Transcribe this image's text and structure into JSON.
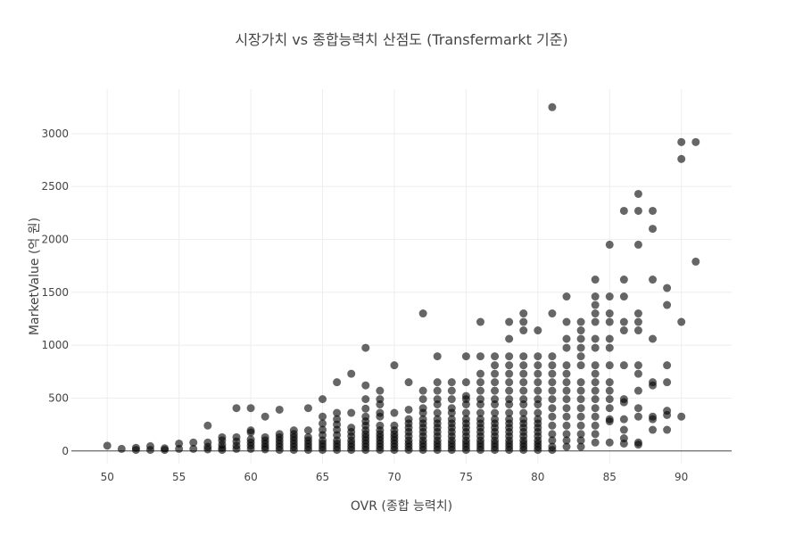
{
  "chart_data": {
    "type": "scatter",
    "title": "시장가치 vs 종합능력치 산점도 (Transfermarkt 기준)",
    "xlabel": "OVR (종합 능력치)",
    "ylabel": "MarketValue (억 원)",
    "xlim": [
      47.5,
      93.5
    ],
    "ylim": [
      -120,
      3420
    ],
    "xticks": [
      50,
      55,
      60,
      65,
      70,
      75,
      80,
      85,
      90
    ],
    "yticks": [
      0,
      500,
      1000,
      1500,
      2000,
      2500,
      3000
    ],
    "grid": true,
    "zeroline": true,
    "marker_color": "#000000",
    "marker_opacity": 0.6,
    "points": [
      [
        50,
        50
      ],
      [
        51,
        20
      ],
      [
        52,
        30
      ],
      [
        52,
        10
      ],
      [
        53,
        45
      ],
      [
        53,
        10
      ],
      [
        54,
        25
      ],
      [
        54,
        10
      ],
      [
        55,
        70
      ],
      [
        55,
        20
      ],
      [
        56,
        80
      ],
      [
        56,
        20
      ],
      [
        57,
        240
      ],
      [
        57,
        80
      ],
      [
        57,
        40
      ],
      [
        57,
        15
      ],
      [
        58,
        130
      ],
      [
        58,
        100
      ],
      [
        58,
        60
      ],
      [
        58,
        30
      ],
      [
        58,
        10
      ],
      [
        59,
        405
      ],
      [
        59,
        130
      ],
      [
        59,
        90
      ],
      [
        59,
        50
      ],
      [
        59,
        20
      ],
      [
        60,
        405
      ],
      [
        60,
        195
      ],
      [
        60,
        175
      ],
      [
        60,
        110
      ],
      [
        60,
        80
      ],
      [
        60,
        50
      ],
      [
        60,
        20
      ],
      [
        61,
        325
      ],
      [
        61,
        130
      ],
      [
        61,
        100
      ],
      [
        61,
        70
      ],
      [
        61,
        40
      ],
      [
        61,
        15
      ],
      [
        62,
        390
      ],
      [
        62,
        160
      ],
      [
        62,
        130
      ],
      [
        62,
        100
      ],
      [
        62,
        70
      ],
      [
        62,
        40
      ],
      [
        62,
        10
      ],
      [
        63,
        195
      ],
      [
        63,
        160
      ],
      [
        63,
        130
      ],
      [
        63,
        100
      ],
      [
        63,
        70
      ],
      [
        63,
        40
      ],
      [
        63,
        10
      ],
      [
        64,
        405
      ],
      [
        64,
        195
      ],
      [
        64,
        130
      ],
      [
        64,
        100
      ],
      [
        64,
        70
      ],
      [
        64,
        40
      ],
      [
        64,
        10
      ],
      [
        65,
        490
      ],
      [
        65,
        325
      ],
      [
        65,
        260
      ],
      [
        65,
        200
      ],
      [
        65,
        150
      ],
      [
        65,
        100
      ],
      [
        65,
        70
      ],
      [
        65,
        40
      ],
      [
        65,
        10
      ],
      [
        66,
        650
      ],
      [
        66,
        360
      ],
      [
        66,
        300
      ],
      [
        66,
        250
      ],
      [
        66,
        200
      ],
      [
        66,
        150
      ],
      [
        66,
        100
      ],
      [
        66,
        70
      ],
      [
        66,
        40
      ],
      [
        66,
        10
      ],
      [
        67,
        730
      ],
      [
        67,
        360
      ],
      [
        67,
        220
      ],
      [
        67,
        180
      ],
      [
        67,
        140
      ],
      [
        67,
        100
      ],
      [
        67,
        70
      ],
      [
        67,
        40
      ],
      [
        67,
        10
      ],
      [
        68,
        975
      ],
      [
        68,
        620
      ],
      [
        68,
        490
      ],
      [
        68,
        400
      ],
      [
        68,
        325
      ],
      [
        68,
        280
      ],
      [
        68,
        240
      ],
      [
        68,
        195
      ],
      [
        68,
        160
      ],
      [
        68,
        130
      ],
      [
        68,
        100
      ],
      [
        68,
        70
      ],
      [
        68,
        40
      ],
      [
        68,
        10
      ],
      [
        69,
        570
      ],
      [
        69,
        490
      ],
      [
        69,
        440
      ],
      [
        69,
        360
      ],
      [
        69,
        325
      ],
      [
        69,
        240
      ],
      [
        69,
        195
      ],
      [
        69,
        160
      ],
      [
        69,
        130
      ],
      [
        69,
        100
      ],
      [
        69,
        70
      ],
      [
        69,
        40
      ],
      [
        69,
        10
      ],
      [
        70,
        810
      ],
      [
        70,
        360
      ],
      [
        70,
        240
      ],
      [
        70,
        195
      ],
      [
        70,
        160
      ],
      [
        70,
        130
      ],
      [
        70,
        100
      ],
      [
        70,
        70
      ],
      [
        70,
        40
      ],
      [
        70,
        10
      ],
      [
        71,
        650
      ],
      [
        71,
        390
      ],
      [
        71,
        300
      ],
      [
        71,
        260
      ],
      [
        71,
        220
      ],
      [
        71,
        180
      ],
      [
        71,
        140
      ],
      [
        71,
        100
      ],
      [
        71,
        70
      ],
      [
        71,
        40
      ],
      [
        71,
        10
      ],
      [
        72,
        1300
      ],
      [
        72,
        570
      ],
      [
        72,
        490
      ],
      [
        72,
        405
      ],
      [
        72,
        360
      ],
      [
        72,
        300
      ],
      [
        72,
        260
      ],
      [
        72,
        220
      ],
      [
        72,
        180
      ],
      [
        72,
        140
      ],
      [
        72,
        100
      ],
      [
        72,
        70
      ],
      [
        72,
        40
      ],
      [
        72,
        10
      ],
      [
        73,
        895
      ],
      [
        73,
        650
      ],
      [
        73,
        570
      ],
      [
        73,
        490
      ],
      [
        73,
        440
      ],
      [
        73,
        360
      ],
      [
        73,
        300
      ],
      [
        73,
        260
      ],
      [
        73,
        220
      ],
      [
        73,
        180
      ],
      [
        73,
        140
      ],
      [
        73,
        100
      ],
      [
        73,
        70
      ],
      [
        73,
        40
      ],
      [
        73,
        10
      ],
      [
        74,
        650
      ],
      [
        74,
        570
      ],
      [
        74,
        490
      ],
      [
        74,
        405
      ],
      [
        74,
        360
      ],
      [
        74,
        300
      ],
      [
        74,
        260
      ],
      [
        74,
        220
      ],
      [
        74,
        180
      ],
      [
        74,
        140
      ],
      [
        74,
        100
      ],
      [
        74,
        70
      ],
      [
        74,
        40
      ],
      [
        74,
        10
      ],
      [
        75,
        895
      ],
      [
        75,
        650
      ],
      [
        75,
        520
      ],
      [
        75,
        490
      ],
      [
        75,
        440
      ],
      [
        75,
        360
      ],
      [
        75,
        300
      ],
      [
        75,
        260
      ],
      [
        75,
        220
      ],
      [
        75,
        180
      ],
      [
        75,
        140
      ],
      [
        75,
        100
      ],
      [
        75,
        70
      ],
      [
        75,
        40
      ],
      [
        75,
        10
      ],
      [
        76,
        1220
      ],
      [
        76,
        895
      ],
      [
        76,
        730
      ],
      [
        76,
        650
      ],
      [
        76,
        570
      ],
      [
        76,
        490
      ],
      [
        76,
        440
      ],
      [
        76,
        360
      ],
      [
        76,
        300
      ],
      [
        76,
        260
      ],
      [
        76,
        220
      ],
      [
        76,
        180
      ],
      [
        76,
        140
      ],
      [
        76,
        100
      ],
      [
        76,
        70
      ],
      [
        76,
        40
      ],
      [
        76,
        10
      ],
      [
        77,
        895
      ],
      [
        77,
        810
      ],
      [
        77,
        730
      ],
      [
        77,
        650
      ],
      [
        77,
        570
      ],
      [
        77,
        490
      ],
      [
        77,
        440
      ],
      [
        77,
        360
      ],
      [
        77,
        300
      ],
      [
        77,
        260
      ],
      [
        77,
        220
      ],
      [
        77,
        180
      ],
      [
        77,
        140
      ],
      [
        77,
        100
      ],
      [
        77,
        70
      ],
      [
        77,
        40
      ],
      [
        77,
        10
      ],
      [
        78,
        1220
      ],
      [
        78,
        1060
      ],
      [
        78,
        895
      ],
      [
        78,
        810
      ],
      [
        78,
        730
      ],
      [
        78,
        650
      ],
      [
        78,
        570
      ],
      [
        78,
        490
      ],
      [
        78,
        440
      ],
      [
        78,
        360
      ],
      [
        78,
        300
      ],
      [
        78,
        260
      ],
      [
        78,
        220
      ],
      [
        78,
        180
      ],
      [
        78,
        140
      ],
      [
        78,
        100
      ],
      [
        78,
        70
      ],
      [
        78,
        40
      ],
      [
        78,
        10
      ],
      [
        79,
        1300
      ],
      [
        79,
        1220
      ],
      [
        79,
        1140
      ],
      [
        79,
        895
      ],
      [
        79,
        810
      ],
      [
        79,
        730
      ],
      [
        79,
        650
      ],
      [
        79,
        570
      ],
      [
        79,
        490
      ],
      [
        79,
        440
      ],
      [
        79,
        360
      ],
      [
        79,
        300
      ],
      [
        79,
        260
      ],
      [
        79,
        220
      ],
      [
        79,
        180
      ],
      [
        79,
        140
      ],
      [
        79,
        100
      ],
      [
        79,
        70
      ],
      [
        79,
        40
      ],
      [
        79,
        10
      ],
      [
        80,
        1140
      ],
      [
        80,
        895
      ],
      [
        80,
        810
      ],
      [
        80,
        730
      ],
      [
        80,
        650
      ],
      [
        80,
        570
      ],
      [
        80,
        490
      ],
      [
        80,
        440
      ],
      [
        80,
        360
      ],
      [
        80,
        300
      ],
      [
        80,
        260
      ],
      [
        80,
        220
      ],
      [
        80,
        180
      ],
      [
        80,
        140
      ],
      [
        80,
        100
      ],
      [
        80,
        70
      ],
      [
        80,
        40
      ],
      [
        80,
        10
      ],
      [
        81,
        3250
      ],
      [
        81,
        1300
      ],
      [
        81,
        895
      ],
      [
        81,
        810
      ],
      [
        81,
        730
      ],
      [
        81,
        650
      ],
      [
        81,
        570
      ],
      [
        81,
        490
      ],
      [
        81,
        405
      ],
      [
        81,
        325
      ],
      [
        81,
        240
      ],
      [
        81,
        160
      ],
      [
        81,
        100
      ],
      [
        81,
        40
      ],
      [
        81,
        10
      ],
      [
        82,
        1460
      ],
      [
        82,
        1220
      ],
      [
        82,
        1060
      ],
      [
        82,
        975
      ],
      [
        82,
        810
      ],
      [
        82,
        730
      ],
      [
        82,
        650
      ],
      [
        82,
        570
      ],
      [
        82,
        490
      ],
      [
        82,
        405
      ],
      [
        82,
        325
      ],
      [
        82,
        240
      ],
      [
        82,
        160
      ],
      [
        82,
        100
      ],
      [
        82,
        40
      ],
      [
        83,
        1220
      ],
      [
        83,
        1140
      ],
      [
        83,
        1060
      ],
      [
        83,
        975
      ],
      [
        83,
        895
      ],
      [
        83,
        810
      ],
      [
        83,
        650
      ],
      [
        83,
        570
      ],
      [
        83,
        490
      ],
      [
        83,
        405
      ],
      [
        83,
        325
      ],
      [
        83,
        240
      ],
      [
        83,
        160
      ],
      [
        83,
        100
      ],
      [
        83,
        40
      ],
      [
        84,
        1620
      ],
      [
        84,
        1460
      ],
      [
        84,
        1380
      ],
      [
        84,
        1300
      ],
      [
        84,
        1220
      ],
      [
        84,
        1060
      ],
      [
        84,
        975
      ],
      [
        84,
        810
      ],
      [
        84,
        730
      ],
      [
        84,
        650
      ],
      [
        84,
        570
      ],
      [
        84,
        490
      ],
      [
        84,
        405
      ],
      [
        84,
        325
      ],
      [
        84,
        240
      ],
      [
        84,
        160
      ],
      [
        84,
        80
      ],
      [
        85,
        1950
      ],
      [
        85,
        1460
      ],
      [
        85,
        1300
      ],
      [
        85,
        1220
      ],
      [
        85,
        1060
      ],
      [
        85,
        975
      ],
      [
        85,
        810
      ],
      [
        85,
        650
      ],
      [
        85,
        570
      ],
      [
        85,
        490
      ],
      [
        85,
        405
      ],
      [
        85,
        300
      ],
      [
        85,
        280
      ],
      [
        85,
        80
      ],
      [
        86,
        2270
      ],
      [
        86,
        1620
      ],
      [
        86,
        1460
      ],
      [
        86,
        1220
      ],
      [
        86,
        1140
      ],
      [
        86,
        810
      ],
      [
        86,
        490
      ],
      [
        86,
        460
      ],
      [
        86,
        300
      ],
      [
        86,
        200
      ],
      [
        86,
        120
      ],
      [
        86,
        70
      ],
      [
        87,
        2430
      ],
      [
        87,
        2270
      ],
      [
        87,
        1950
      ],
      [
        87,
        1300
      ],
      [
        87,
        1220
      ],
      [
        87,
        1140
      ],
      [
        87,
        810
      ],
      [
        87,
        730
      ],
      [
        87,
        570
      ],
      [
        87,
        405
      ],
      [
        87,
        325
      ],
      [
        87,
        80
      ],
      [
        87,
        60
      ],
      [
        88,
        2270
      ],
      [
        88,
        2100
      ],
      [
        88,
        1620
      ],
      [
        88,
        1060
      ],
      [
        88,
        650
      ],
      [
        88,
        620
      ],
      [
        88,
        325
      ],
      [
        88,
        300
      ],
      [
        88,
        200
      ],
      [
        89,
        1540
      ],
      [
        89,
        1380
      ],
      [
        89,
        810
      ],
      [
        89,
        650
      ],
      [
        89,
        380
      ],
      [
        89,
        340
      ],
      [
        89,
        200
      ],
      [
        90,
        2920
      ],
      [
        90,
        2760
      ],
      [
        90,
        1220
      ],
      [
        90,
        325
      ],
      [
        91,
        2920
      ],
      [
        91,
        1790
      ]
    ]
  }
}
